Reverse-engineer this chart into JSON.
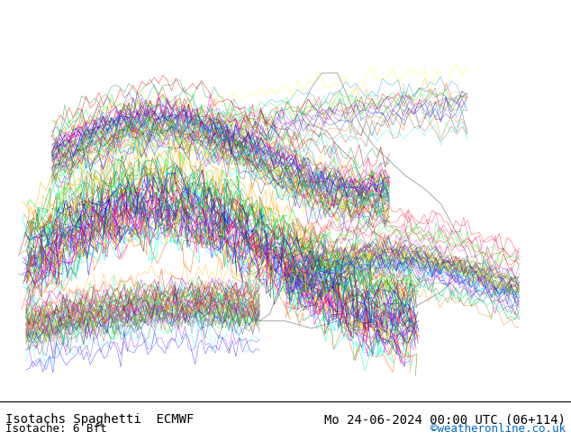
{
  "title_left": "Isotachs Spaghetti  ECMWF",
  "title_right": "Mo 24-06-2024 00:00 UTC (06+114)",
  "subtitle_left": "Isotache: 6 Bft",
  "subtitle_right": "©weatheronline.co.uk",
  "subtitle_right_color": "#0066cc",
  "background_map_color": "#c8e6c8",
  "land_color": "#c8e6c8",
  "sea_color": "#ffffff",
  "coast_color": "#888888",
  "bottom_bar_color": "#000000",
  "bottom_bg": "#e8e8e8",
  "font_size_title": 10,
  "font_size_subtitle": 9,
  "spaghetti_colors": [
    "#ff0000",
    "#ff6600",
    "#ffaa00",
    "#ffff00",
    "#00ff00",
    "#00ffaa",
    "#00ffff",
    "#0088ff",
    "#0000ff",
    "#8800ff",
    "#ff00ff",
    "#ff0088",
    "#888888",
    "#444444",
    "#00aa44",
    "#aa4400",
    "#004488",
    "#880044",
    "#448800",
    "#004400"
  ],
  "figsize": [
    6.34,
    4.9
  ],
  "dpi": 100
}
